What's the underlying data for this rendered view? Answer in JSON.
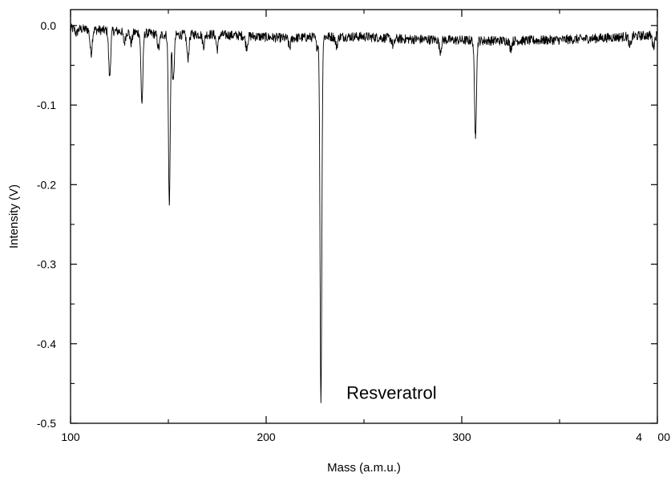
{
  "chart_data": {
    "type": "line",
    "title": "",
    "xlabel": "Mass (a.m.u.)",
    "ylabel": "Intensity (V)",
    "xlim": [
      100,
      400
    ],
    "ylim": [
      -0.5,
      0.02
    ],
    "x_tick_values": [
      100,
      200,
      300,
      400
    ],
    "x_tick_labels": [
      "100",
      "200",
      "300",
      "4     00"
    ],
    "y_tick_values": [
      0.0,
      -0.1,
      -0.2,
      -0.3,
      -0.4,
      -0.5
    ],
    "y_tick_labels": [
      "0.0",
      "-0.1",
      "-0.2",
      "-0.3",
      "-0.4",
      "-0.5"
    ],
    "grid": false,
    "baseline": [
      [
        100,
        -0.004
      ],
      [
        110,
        -0.005
      ],
      [
        130,
        -0.008
      ],
      [
        150,
        -0.012
      ],
      [
        170,
        -0.011
      ],
      [
        190,
        -0.013
      ],
      [
        210,
        -0.016
      ],
      [
        230,
        -0.014
      ],
      [
        250,
        -0.014
      ],
      [
        270,
        -0.017
      ],
      [
        290,
        -0.018
      ],
      [
        310,
        -0.019
      ],
      [
        330,
        -0.019
      ],
      [
        350,
        -0.018
      ],
      [
        370,
        -0.016
      ],
      [
        390,
        -0.013
      ],
      [
        400,
        -0.012
      ]
    ],
    "noise_amplitude": 0.006,
    "peaks": [
      {
        "x": 103.0,
        "depth": 0.006
      },
      {
        "x": 110.5,
        "depth": 0.03
      },
      {
        "x": 120.0,
        "depth": 0.058
      },
      {
        "x": 127.5,
        "depth": 0.014
      },
      {
        "x": 131.0,
        "depth": 0.014
      },
      {
        "x": 136.5,
        "depth": 0.088
      },
      {
        "x": 145.0,
        "depth": 0.018
      },
      {
        "x": 150.5,
        "depth": 0.214
      },
      {
        "x": 152.5,
        "depth": 0.06
      },
      {
        "x": 160.0,
        "depth": 0.03
      },
      {
        "x": 168.0,
        "depth": 0.014
      },
      {
        "x": 175.0,
        "depth": 0.018
      },
      {
        "x": 190.0,
        "depth": 0.014
      },
      {
        "x": 212.0,
        "depth": 0.012
      },
      {
        "x": 226.0,
        "depth": 0.012
      },
      {
        "x": 228.0,
        "depth": 0.46
      },
      {
        "x": 236.0,
        "depth": 0.012
      },
      {
        "x": 265.0,
        "depth": 0.01
      },
      {
        "x": 289.0,
        "depth": 0.014
      },
      {
        "x": 307.0,
        "depth": 0.118
      },
      {
        "x": 325.0,
        "depth": 0.01
      },
      {
        "x": 386.0,
        "depth": 0.014
      },
      {
        "x": 398.0,
        "depth": 0.014
      }
    ],
    "line_color": "#000000",
    "annotations": [
      {
        "text": "Resveratrol",
        "x": 248,
        "y": -0.462
      }
    ]
  }
}
